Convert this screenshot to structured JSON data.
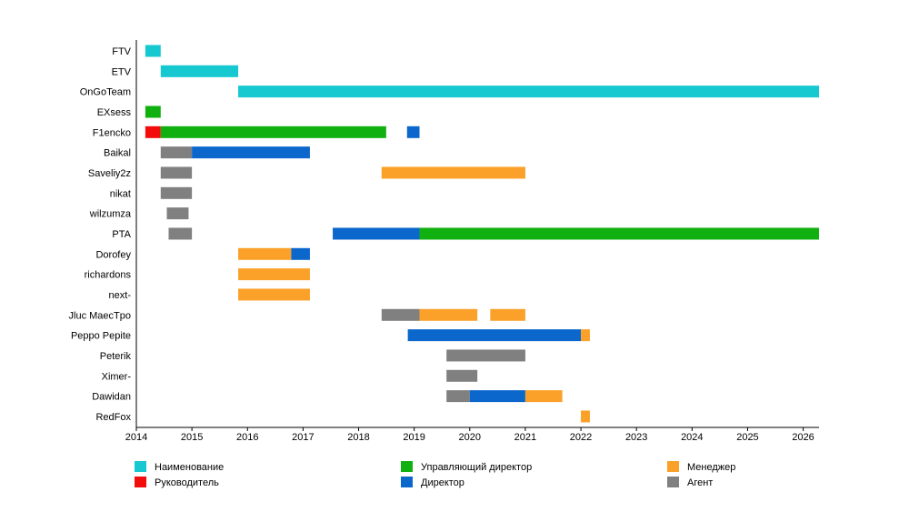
{
  "chart_data": {
    "type": "timeline",
    "title": "",
    "xlabel": "",
    "ylabel": "",
    "xlim": [
      "2014-01-01",
      "2026-04-15"
    ],
    "x_ticks": [
      "2014",
      "2015",
      "2016",
      "2017",
      "2018",
      "2019",
      "2020",
      "2021",
      "2022",
      "2023",
      "2024",
      "2025",
      "2026"
    ],
    "grid": false,
    "legend_position": "bottom",
    "categories": [
      {
        "key": "naming",
        "label": "Наименование",
        "color": "#16c9d0"
      },
      {
        "key": "head",
        "label": "Руководитель",
        "color": "#f20c0c"
      },
      {
        "key": "mdir",
        "label": "Управляющий директор",
        "color": "#10b010"
      },
      {
        "key": "dir",
        "label": "Директор",
        "color": "#0b67cc"
      },
      {
        "key": "mgr",
        "label": "Менеджер",
        "color": "#fba129"
      },
      {
        "key": "agent",
        "label": "Агент",
        "color": "#808080"
      }
    ],
    "rows": [
      {
        "label": "FTV",
        "segments": [
          {
            "start": "2014-03-01",
            "end": "2014-06-10",
            "cat": "naming"
          }
        ]
      },
      {
        "label": "ETV",
        "segments": [
          {
            "start": "2014-06-10",
            "end": "2015-11-01",
            "cat": "naming"
          }
        ]
      },
      {
        "label": "OnGoTeam",
        "segments": [
          {
            "start": "2015-11-01",
            "end": "2026-04-15",
            "cat": "naming"
          }
        ]
      },
      {
        "label": "EXsess",
        "segments": [
          {
            "start": "2014-03-01",
            "end": "2014-06-10",
            "cat": "mdir"
          }
        ]
      },
      {
        "label": "F1encko",
        "segments": [
          {
            "start": "2014-03-01",
            "end": "2014-06-10",
            "cat": "head"
          },
          {
            "start": "2014-06-10",
            "end": "2018-07-01",
            "cat": "mdir"
          },
          {
            "start": "2018-11-15",
            "end": "2019-02-05",
            "cat": "dir"
          }
        ]
      },
      {
        "label": "Baikal",
        "segments": [
          {
            "start": "2014-06-10",
            "end": "2015-01-01",
            "cat": "agent"
          },
          {
            "start": "2015-01-01",
            "end": "2017-02-15",
            "cat": "dir"
          }
        ]
      },
      {
        "label": "Saveliy2z",
        "segments": [
          {
            "start": "2014-06-10",
            "end": "2015-01-01",
            "cat": "agent"
          },
          {
            "start": "2018-06-01",
            "end": "2021-01-01",
            "cat": "mgr"
          }
        ]
      },
      {
        "label": "nikat",
        "segments": [
          {
            "start": "2014-06-10",
            "end": "2015-01-01",
            "cat": "agent"
          }
        ]
      },
      {
        "label": "wilzumza",
        "segments": [
          {
            "start": "2014-07-20",
            "end": "2014-12-10",
            "cat": "agent"
          }
        ]
      },
      {
        "label": "PTA",
        "segments": [
          {
            "start": "2014-08-01",
            "end": "2015-01-01",
            "cat": "agent"
          },
          {
            "start": "2017-07-15",
            "end": "2019-02-05",
            "cat": "dir"
          },
          {
            "start": "2019-02-05",
            "end": "2026-04-15",
            "cat": "mdir"
          }
        ]
      },
      {
        "label": "Dorofey",
        "segments": [
          {
            "start": "2015-11-01",
            "end": "2016-10-15",
            "cat": "mgr"
          },
          {
            "start": "2016-10-15",
            "end": "2017-02-15",
            "cat": "dir"
          }
        ]
      },
      {
        "label": "richardons",
        "segments": [
          {
            "start": "2015-11-01",
            "end": "2017-02-15",
            "cat": "mgr"
          }
        ]
      },
      {
        "label": "next-",
        "segments": [
          {
            "start": "2015-11-01",
            "end": "2017-02-15",
            "cat": "mgr"
          }
        ]
      },
      {
        "label": "Jluc MaecTpo",
        "segments": [
          {
            "start": "2018-06-01",
            "end": "2019-02-05",
            "cat": "agent"
          },
          {
            "start": "2019-02-05",
            "end": "2020-02-20",
            "cat": "mgr"
          },
          {
            "start": "2020-05-15",
            "end": "2021-01-01",
            "cat": "mgr"
          }
        ]
      },
      {
        "label": "Peppo Pepite",
        "segments": [
          {
            "start": "2018-11-20",
            "end": "2022-01-01",
            "cat": "dir"
          },
          {
            "start": "2022-01-01",
            "end": "2022-03-01",
            "cat": "mgr"
          }
        ]
      },
      {
        "label": "Peterik",
        "segments": [
          {
            "start": "2019-08-01",
            "end": "2021-01-01",
            "cat": "agent"
          }
        ]
      },
      {
        "label": "Ximer-",
        "segments": [
          {
            "start": "2019-08-01",
            "end": "2020-02-20",
            "cat": "agent"
          }
        ]
      },
      {
        "label": "Dawidan",
        "segments": [
          {
            "start": "2019-08-01",
            "end": "2020-01-01",
            "cat": "agent"
          },
          {
            "start": "2020-01-01",
            "end": "2021-01-01",
            "cat": "dir"
          },
          {
            "start": "2021-01-01",
            "end": "2021-09-01",
            "cat": "mgr"
          }
        ]
      },
      {
        "label": "RedFox",
        "segments": [
          {
            "start": "2022-01-01",
            "end": "2022-03-01",
            "cat": "mgr"
          }
        ]
      }
    ]
  }
}
